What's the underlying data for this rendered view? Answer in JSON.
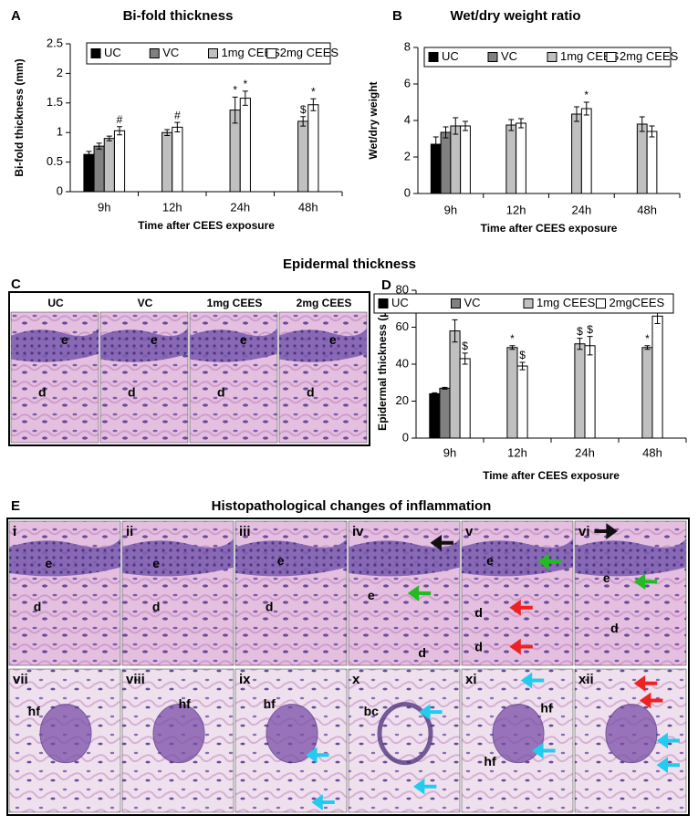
{
  "chart_data": [
    {
      "type": "bar",
      "panel": "A",
      "title": "Bi-fold thickness",
      "x_label": "Time after CEES exposure",
      "y_label": "Bi-fold thickness (mm)",
      "categories": [
        "9h",
        "12h",
        "24h",
        "48h"
      ],
      "series": [
        {
          "name": "UC",
          "color": "#000000",
          "values": [
            0.63,
            null,
            null,
            null
          ],
          "errors": [
            0.05,
            null,
            null,
            null
          ],
          "significance": [
            null,
            null,
            null,
            null
          ]
        },
        {
          "name": "VC",
          "color": "#808080",
          "values": [
            0.77,
            null,
            null,
            null
          ],
          "errors": [
            0.05,
            null,
            null,
            null
          ],
          "significance": [
            null,
            null,
            null,
            null
          ]
        },
        {
          "name": "1mg CEES",
          "color": "#c0c0c0",
          "values": [
            0.9,
            1.0,
            1.38,
            1.19
          ],
          "errors": [
            0.04,
            0.05,
            0.22,
            0.08
          ],
          "significance": [
            null,
            null,
            "*",
            "$"
          ]
        },
        {
          "name": "2mg CEES",
          "color": "#ffffff",
          "values": [
            1.03,
            1.09,
            1.58,
            1.47
          ],
          "errors": [
            0.07,
            0.08,
            0.12,
            0.1
          ],
          "significance": [
            "#",
            "#",
            "*",
            "*"
          ]
        }
      ],
      "ylim": [
        0,
        2.5
      ],
      "yticks": [
        0,
        0.5,
        1,
        1.5,
        2,
        2.5
      ],
      "grid": false,
      "legend": "top"
    },
    {
      "type": "bar",
      "panel": "B",
      "title": "Wet/dry weight ratio",
      "x_label": "Time after CEES exposure",
      "y_label": "Wet/dry weight",
      "categories": [
        "9h",
        "12h",
        "24h",
        "48h"
      ],
      "series": [
        {
          "name": "UC",
          "color": "#000000",
          "values": [
            2.7,
            null,
            null,
            null
          ],
          "errors": [
            0.4,
            null,
            null,
            null
          ],
          "significance": [
            null,
            null,
            null,
            null
          ]
        },
        {
          "name": "VC",
          "color": "#808080",
          "values": [
            3.35,
            null,
            null,
            null
          ],
          "errors": [
            0.3,
            null,
            null,
            null
          ],
          "significance": [
            null,
            null,
            null,
            null
          ]
        },
        {
          "name": "1mg CEES",
          "color": "#c0c0c0",
          "values": [
            3.7,
            3.75,
            4.35,
            3.8
          ],
          "errors": [
            0.45,
            0.3,
            0.4,
            0.4
          ],
          "significance": [
            null,
            null,
            null,
            null
          ]
        },
        {
          "name": "2mg CEES",
          "color": "#ffffff",
          "values": [
            3.7,
            3.85,
            4.65,
            3.4
          ],
          "errors": [
            0.25,
            0.25,
            0.35,
            0.3
          ],
          "significance": [
            null,
            null,
            "*",
            null
          ]
        }
      ],
      "ylim": [
        0,
        8
      ],
      "yticks": [
        0,
        2,
        4,
        6,
        8
      ],
      "grid": false,
      "legend": "top"
    },
    {
      "type": "bar",
      "panel": "D",
      "title": "Epidermal thickness",
      "x_label": "Time after CEES exposure",
      "y_label": "Epidermal thickness (µm)",
      "categories": [
        "9h",
        "12h",
        "24h",
        "48h"
      ],
      "series": [
        {
          "name": "UC",
          "color": "#000000",
          "values": [
            24,
            null,
            null,
            null
          ],
          "errors": [
            0.5,
            null,
            null,
            null
          ],
          "significance": [
            null,
            null,
            null,
            null
          ]
        },
        {
          "name": "VC",
          "color": "#808080",
          "values": [
            27,
            null,
            null,
            null
          ],
          "errors": [
            0.5,
            null,
            null,
            null
          ],
          "significance": [
            null,
            null,
            null,
            null
          ]
        },
        {
          "name": "1mg CEES",
          "color": "#c0c0c0",
          "values": [
            58,
            49,
            51,
            49
          ],
          "errors": [
            6,
            1,
            3,
            1
          ],
          "significance": [
            "*",
            "*",
            "$",
            "*"
          ]
        },
        {
          "name": "2mgCEES",
          "color": "#ffffff",
          "values": [
            43,
            39,
            50,
            66
          ],
          "errors": [
            3,
            2,
            5,
            4
          ],
          "significance": [
            "$",
            "$",
            "$",
            "*"
          ]
        }
      ],
      "ylim": [
        0,
        80
      ],
      "yticks": [
        0,
        20,
        40,
        60,
        80
      ],
      "grid": false,
      "legend": "top"
    }
  ],
  "panel_c": {
    "panel": "C",
    "columns": [
      "UC",
      "VC",
      "1mg CEES",
      "2mg CEES"
    ],
    "labels": [
      [
        "e",
        "d"
      ],
      [
        "e",
        "d"
      ],
      [
        "e",
        "d"
      ],
      [
        "e",
        "d"
      ]
    ]
  },
  "panel_e": {
    "panel": "E",
    "title": "Histopathological changes of inflammation",
    "images": [
      {
        "numeral": "i",
        "labels": [
          "e",
          "d"
        ]
      },
      {
        "numeral": "ii",
        "labels": [
          "e",
          "d"
        ]
      },
      {
        "numeral": "iii",
        "labels": [
          "e",
          "d"
        ]
      },
      {
        "numeral": "iv",
        "labels": [
          "e",
          "d"
        ]
      },
      {
        "numeral": "v",
        "labels": [
          "e",
          "d",
          "d"
        ]
      },
      {
        "numeral": "vi",
        "labels": [
          "e",
          "d"
        ]
      },
      {
        "numeral": "vii",
        "labels": [
          "hf"
        ]
      },
      {
        "numeral": "viii",
        "labels": [
          "hf"
        ]
      },
      {
        "numeral": "ix",
        "labels": [
          "hf"
        ]
      },
      {
        "numeral": "x",
        "labels": [
          "bc"
        ]
      },
      {
        "numeral": "xi",
        "labels": [
          "hf",
          "hf"
        ]
      },
      {
        "numeral": "xii",
        "labels": []
      }
    ]
  }
}
